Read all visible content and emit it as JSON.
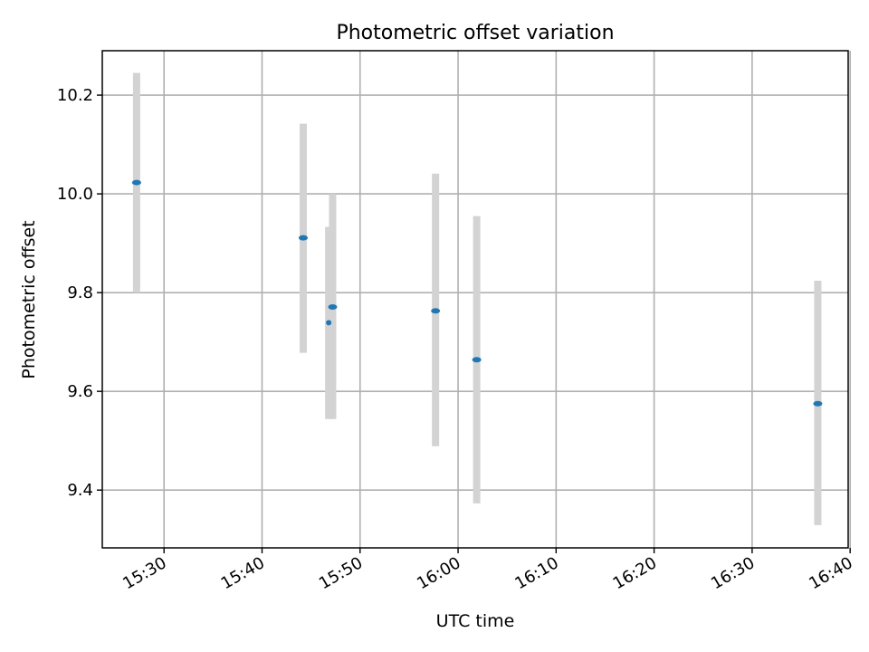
{
  "chart_data": {
    "type": "scatter",
    "title": "Photometric offset variation",
    "xlabel": "UTC time",
    "ylabel": "Photometric offset",
    "xlim": [
      "15:23:42",
      "16:39:48"
    ],
    "ylim": [
      9.283,
      10.29
    ],
    "grid": true,
    "x_ticks": [
      "15:30",
      "15:40",
      "15:50",
      "16:00",
      "16:10",
      "16:20",
      "16:30",
      "16:40"
    ],
    "y_ticks": [
      "9.4",
      "9.6",
      "9.8",
      "10.0",
      "10.2"
    ],
    "series": [
      {
        "color": "#1f77b4",
        "errorbar_color": "#d3d3d3",
        "points": [
          {
            "x": "15:27:12",
            "y": 10.023,
            "ylow": 9.8,
            "yhigh": 10.245
          },
          {
            "x": "15:44:12",
            "y": 9.911,
            "ylow": 9.678,
            "yhigh": 10.142
          },
          {
            "x": "15:46:48",
            "y": 9.739,
            "ylow": 9.544,
            "yhigh": 9.933
          },
          {
            "x": "15:47:12",
            "y": 9.771,
            "ylow": 9.544,
            "yhigh": 10.0
          },
          {
            "x": "15:57:42",
            "y": 9.763,
            "ylow": 9.489,
            "yhigh": 10.041
          },
          {
            "x": "16:01:54",
            "y": 9.664,
            "ylow": 9.373,
            "yhigh": 9.955
          },
          {
            "x": "16:36:42",
            "y": 9.575,
            "ylow": 9.329,
            "yhigh": 9.824
          }
        ]
      }
    ]
  }
}
